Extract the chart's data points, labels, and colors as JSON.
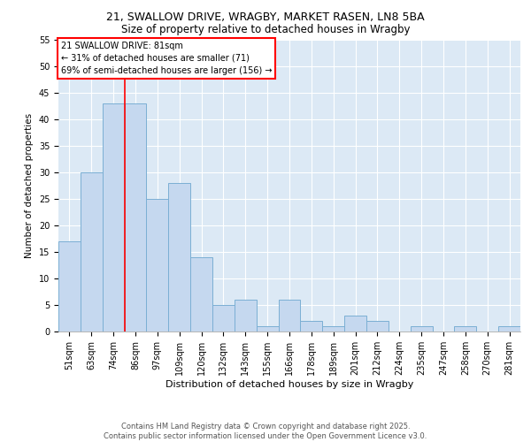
{
  "title1": "21, SWALLOW DRIVE, WRAGBY, MARKET RASEN, LN8 5BA",
  "title2": "Size of property relative to detached houses in Wragby",
  "xlabel": "Distribution of detached houses by size in Wragby",
  "ylabel": "Number of detached properties",
  "categories": [
    "51sqm",
    "63sqm",
    "74sqm",
    "86sqm",
    "97sqm",
    "109sqm",
    "120sqm",
    "132sqm",
    "143sqm",
    "155sqm",
    "166sqm",
    "178sqm",
    "189sqm",
    "201sqm",
    "212sqm",
    "224sqm",
    "235sqm",
    "247sqm",
    "258sqm",
    "270sqm",
    "281sqm"
  ],
  "values": [
    17,
    30,
    43,
    43,
    25,
    28,
    14,
    5,
    6,
    1,
    6,
    2,
    1,
    3,
    2,
    0,
    1,
    0,
    1,
    0,
    1
  ],
  "bar_color": "#c5d8ef",
  "bar_edge_color": "#7bafd4",
  "vline_x_idx": 2.5,
  "vline_color": "red",
  "annotation_text": "21 SWALLOW DRIVE: 81sqm\n← 31% of detached houses are smaller (71)\n69% of semi-detached houses are larger (156) →",
  "annotation_box_color": "white",
  "annotation_box_edge_color": "red",
  "ylim": [
    0,
    55
  ],
  "yticks": [
    0,
    5,
    10,
    15,
    20,
    25,
    30,
    35,
    40,
    45,
    50,
    55
  ],
  "footer": "Contains HM Land Registry data © Crown copyright and database right 2025.\nContains public sector information licensed under the Open Government Licence v3.0.",
  "bg_color": "#dce9f5",
  "plot_bg_color": "#dce9f5",
  "title1_fontsize": 9,
  "title2_fontsize": 8.5,
  "xlabel_fontsize": 8,
  "ylabel_fontsize": 7.5,
  "tick_fontsize": 7,
  "footer_fontsize": 6,
  "annotation_fontsize": 7
}
